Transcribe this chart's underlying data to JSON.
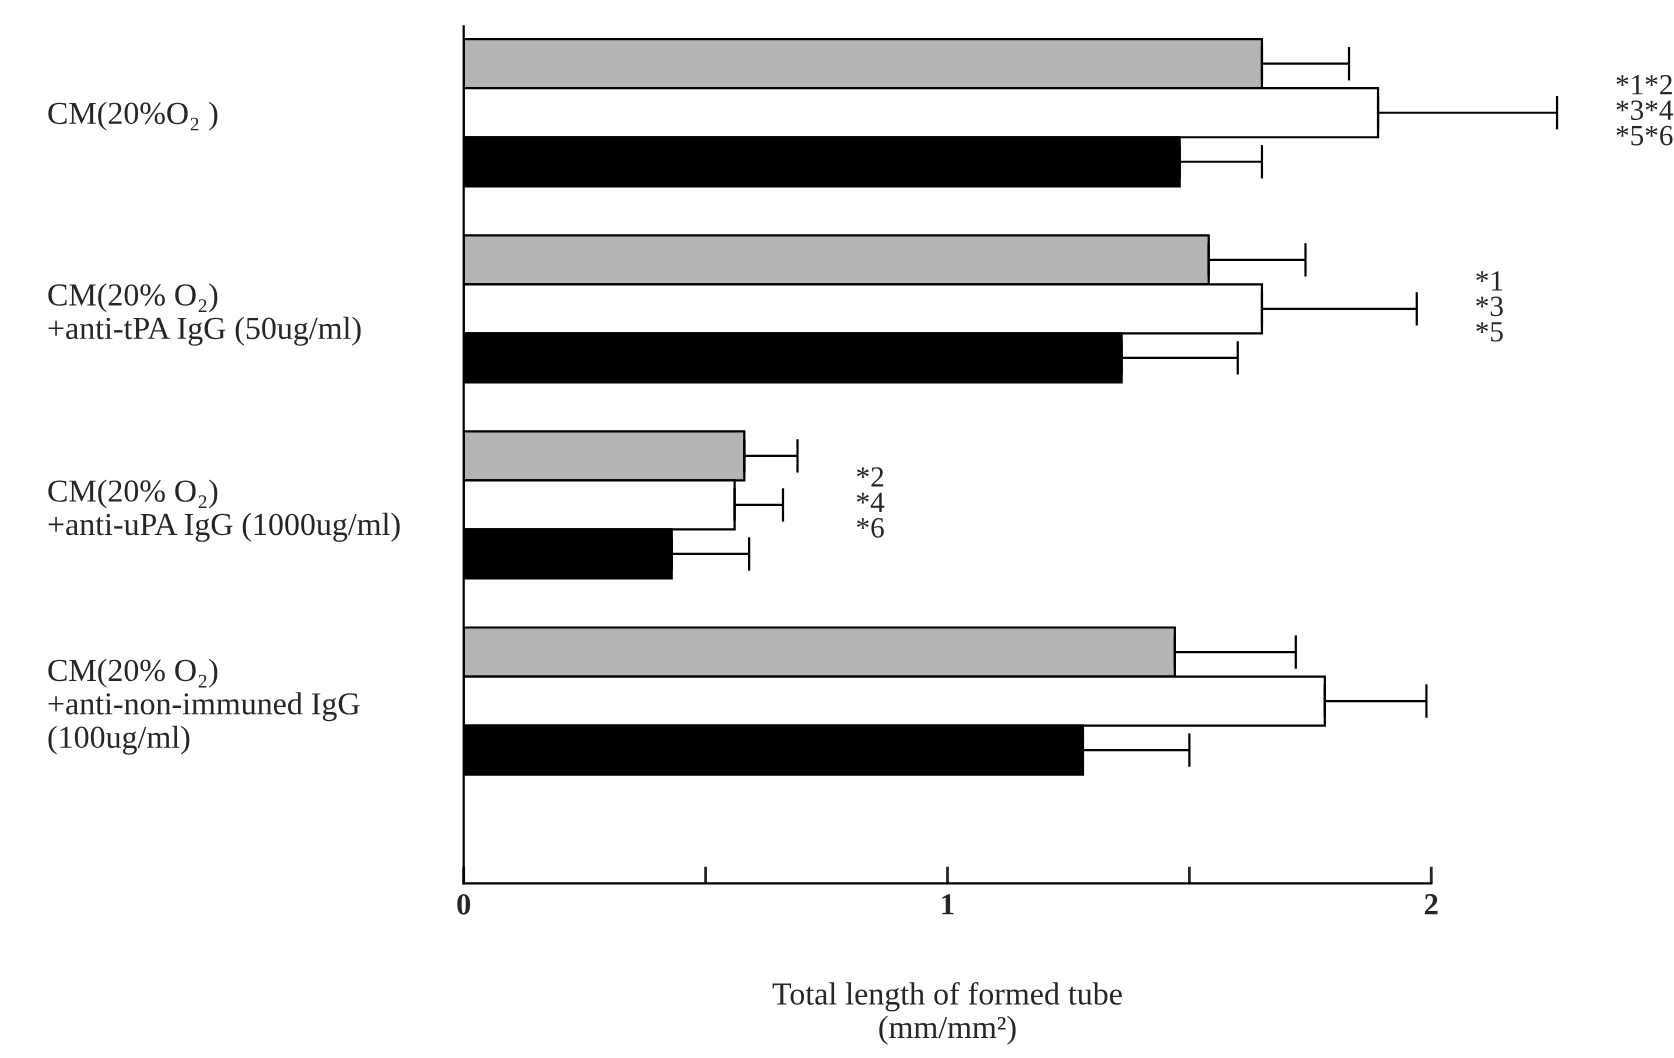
{
  "chart_data": {
    "type": "bar",
    "orientation": "horizontal",
    "categories": [
      "CM(20%O₂ )",
      "CM(20% O₂)\n+anti-tPA IgG (50ug/ml)",
      "CM(20% O₂)\n+anti-uPA IgG (1000ug/ml)",
      "CM(20% O₂)\n+anti-non-immuned IgG\n(100ug/ml)"
    ],
    "series": [
      {
        "color": "#b4b4b4",
        "values": [
          1.65,
          1.54,
          0.58,
          1.47
        ],
        "errors": [
          [
            1.65,
            1.83
          ],
          [
            1.54,
            1.74
          ],
          [
            0.58,
            0.69
          ],
          [
            1.47,
            1.72
          ]
        ]
      },
      {
        "color": "#ffffff",
        "values": [
          1.89,
          1.65,
          0.56,
          1.78
        ],
        "errors": [
          [
            1.89,
            2.26
          ],
          [
            1.65,
            1.97
          ],
          [
            0.56,
            0.66
          ],
          [
            1.78,
            1.99
          ]
        ]
      },
      {
        "color": "#000000",
        "values": [
          1.48,
          1.36,
          0.43,
          1.28
        ],
        "errors": [
          [
            1.48,
            1.65
          ],
          [
            1.36,
            1.6
          ],
          [
            0.43,
            0.59
          ],
          [
            1.28,
            1.5
          ]
        ]
      }
    ],
    "xlabel": "Total length of formed tube\n(mm/mm²)",
    "xlim": [
      0,
      2
    ],
    "xticks": [
      0,
      {
        "value": 0.5,
        "label": null
      },
      1,
      {
        "value": 1.5,
        "label": null
      },
      2
    ],
    "annotations": [
      "*1*2\n*3*4\n*5*6",
      "*1\n*3\n*5",
      "*2\n*4\n*6"
    ],
    "grid": false,
    "legend": false
  }
}
